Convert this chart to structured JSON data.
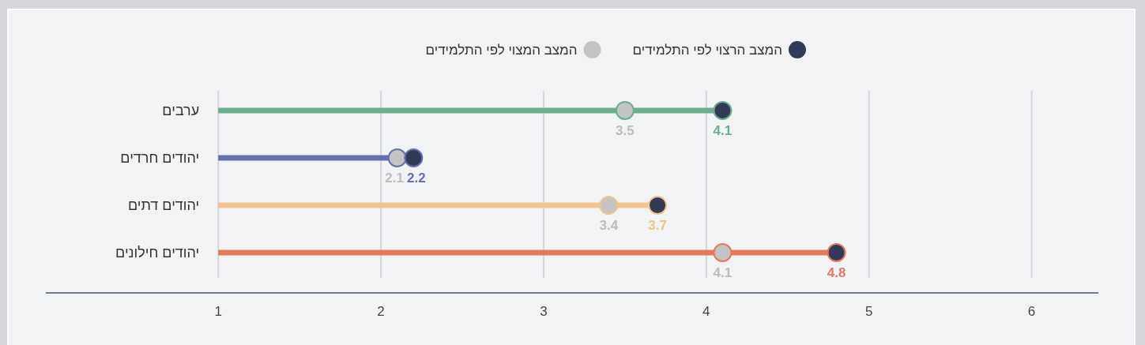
{
  "chart_data": {
    "type": "lollipop",
    "orientation": "horizontal",
    "categories": [
      "ערבים",
      "יהודים חרדים",
      "יהודים דתים",
      "יהודים חילונים"
    ],
    "series": [
      {
        "name": "המצב הרצוי לפי התלמידים",
        "type": "lollipop",
        "color": "#323a56",
        "colors": [
          "#6aaf8f",
          "#6670b0",
          "#f0c48a",
          "#e07a61"
        ],
        "values": [
          4.1,
          2.2,
          3.7,
          4.8
        ]
      },
      {
        "name": "המצב המצוי לפי התלמידים",
        "type": "scatter",
        "color": "#c4c4c4",
        "values": [
          3.5,
          2.1,
          3.4,
          4.1
        ]
      }
    ],
    "xlim": [
      -0.06,
      6.41
    ],
    "xticks": [
      1,
      2,
      3,
      4,
      5,
      6
    ],
    "grid": "x",
    "legend": "top",
    "data_labels": true
  }
}
